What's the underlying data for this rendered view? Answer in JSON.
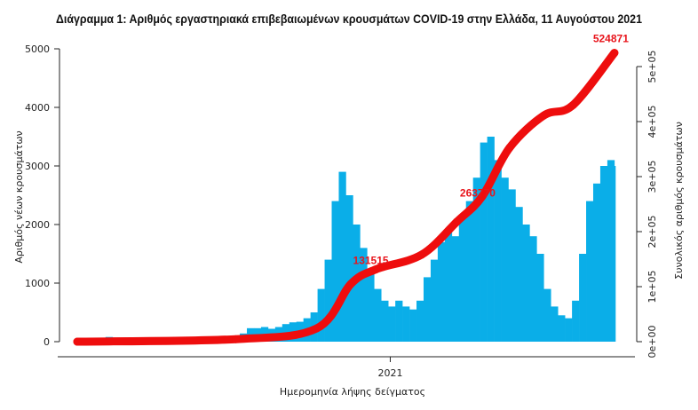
{
  "chart_data": {
    "type": "bar",
    "title": "Διάγραμμα 1: Αριθμός εργαστηριακά επιβεβαιωμένων κρουσμάτων COVID-19 στην Ελλάδα, 11 Αυγούστου 2021",
    "xlabel": "Ημερομηνία λήψης δείγματος",
    "ylabel": "Αριθμός νέων κρουσμάτων",
    "y2label": "Συνολικός αριθμός κρουσμάτων",
    "x_ticks": [
      "2021"
    ],
    "x_range": [
      "2020-02-26",
      "2021-08-11"
    ],
    "ylim": [
      0,
      5000
    ],
    "y_ticks": [
      "0",
      "1000",
      "2000",
      "3000",
      "4000",
      "5000"
    ],
    "y2lim": [
      0,
      500000
    ],
    "y2_ticks": [
      "0e+00",
      "1e+05",
      "2e+05",
      "3e+05",
      "4e+05",
      "5e+05"
    ],
    "grid": false,
    "legend": "none",
    "colors": {
      "bars": "#0aaee8",
      "cumulative": "#ee0d0d"
    },
    "series": [
      {
        "kind": "bar",
        "axis": "left",
        "x": [
          "2020-02-26",
          "2020-03-04",
          "2020-03-11",
          "2020-03-18",
          "2020-03-25",
          "2020-04-01",
          "2020-04-08",
          "2020-04-15",
          "2020-04-22",
          "2020-04-29",
          "2020-05-06",
          "2020-05-13",
          "2020-05-20",
          "2020-05-27",
          "2020-06-03",
          "2020-06-10",
          "2020-06-17",
          "2020-06-24",
          "2020-07-01",
          "2020-07-08",
          "2020-07-15",
          "2020-07-22",
          "2020-07-29",
          "2020-08-05",
          "2020-08-12",
          "2020-08-19",
          "2020-08-26",
          "2020-09-02",
          "2020-09-09",
          "2020-09-16",
          "2020-09-23",
          "2020-09-30",
          "2020-10-07",
          "2020-10-14",
          "2020-10-21",
          "2020-10-28",
          "2020-11-04",
          "2020-11-11",
          "2020-11-18",
          "2020-11-25",
          "2020-12-02",
          "2020-12-09",
          "2020-12-16",
          "2020-12-23",
          "2020-12-30",
          "2021-01-06",
          "2021-01-13",
          "2021-01-20",
          "2021-01-27",
          "2021-02-03",
          "2021-02-10",
          "2021-02-17",
          "2021-02-24",
          "2021-03-03",
          "2021-03-10",
          "2021-03-17",
          "2021-03-24",
          "2021-03-31",
          "2021-04-07",
          "2021-04-14",
          "2021-04-21",
          "2021-04-28",
          "2021-05-05",
          "2021-05-12",
          "2021-05-19",
          "2021-05-26",
          "2021-06-02",
          "2021-06-09",
          "2021-06-16",
          "2021-06-23",
          "2021-06-30",
          "2021-07-07",
          "2021-07-14",
          "2021-07-21",
          "2021-07-28",
          "2021-08-04",
          "2021-08-11"
        ],
        "values": [
          3,
          10,
          40,
          60,
          80,
          70,
          50,
          40,
          30,
          15,
          12,
          10,
          8,
          10,
          12,
          15,
          20,
          18,
          25,
          30,
          30,
          40,
          80,
          140,
          230,
          230,
          250,
          220,
          250,
          300,
          330,
          340,
          400,
          500,
          900,
          1400,
          2400,
          2900,
          2500,
          2000,
          1600,
          1200,
          900,
          700,
          600,
          700,
          600,
          550,
          700,
          1100,
          1400,
          1700,
          1900,
          1800,
          2100,
          2400,
          2800,
          3400,
          3500,
          3100,
          2800,
          2600,
          2300,
          2000,
          1800,
          1500,
          900,
          600,
          450,
          400,
          700,
          1500,
          2400,
          2700,
          3000,
          3100,
          3000
        ]
      },
      {
        "kind": "line",
        "axis": "right",
        "x": [
          "2020-02-26",
          "2020-08-01",
          "2020-10-20",
          "2020-11-23",
          "2020-12-18",
          "2021-02-01",
          "2021-03-08",
          "2021-04-02",
          "2021-04-29",
          "2021-06-02",
          "2021-07-01",
          "2021-08-11"
        ],
        "values": [
          0,
          4500,
          24000,
          105000,
          131515,
          158000,
          218000,
          263770,
          352000,
          411000,
          430000,
          524871
        ]
      }
    ],
    "annotations": [
      "131515",
      "263770",
      "524871"
    ]
  }
}
